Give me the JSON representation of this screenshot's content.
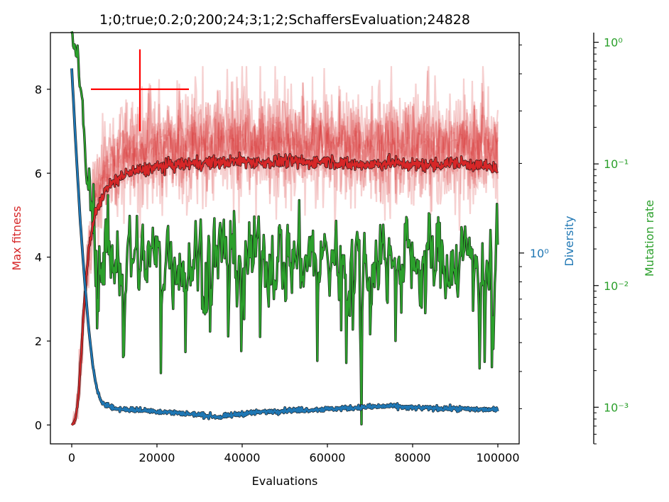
{
  "chart_data": {
    "type": "line",
    "title": "1;0;true;0.2;0;200;24;3;1;2;SchaffersEvaluation;24828",
    "xlabel": "Evaluations",
    "xlim": [
      -5000,
      105000
    ],
    "x_ticks": [
      0,
      20000,
      40000,
      60000,
      80000,
      100000
    ],
    "x_tick_labels": [
      "0",
      "20000",
      "40000",
      "60000",
      "80000",
      "100000"
    ],
    "axes": {
      "left": {
        "label": "Max fitness",
        "color": "#d62728",
        "scale": "linear",
        "ylim": [
          -0.45,
          9.35
        ],
        "ticks": [
          0,
          2,
          4,
          6,
          8
        ],
        "tick_labels": [
          "0",
          "2",
          "4",
          "6",
          "8"
        ]
      },
      "right_inner": {
        "label": "Diversity",
        "color": "#1f77b4",
        "scale": "log",
        "ticks": [
          1
        ],
        "tick_labels": [
          "10⁰"
        ]
      },
      "right_outer": {
        "label": "Mutation rate",
        "color": "#2ca02c",
        "scale": "log",
        "ylim": [
          0.0005,
          1.2
        ],
        "ticks": [
          0.001,
          0.01,
          0.1,
          1
        ],
        "tick_labels": [
          "10⁻³",
          "10⁻²",
          "10⁻¹",
          "10⁰"
        ]
      }
    },
    "marker": {
      "type": "crosshair",
      "color": "#ff0000",
      "x": 16000,
      "y": 8.0,
      "x_range": [
        4500,
        27500
      ],
      "y_range": [
        7.0,
        8.95
      ]
    },
    "series": [
      {
        "name": "Max fitness",
        "axis": "left",
        "color": "#d62728",
        "x": [
          0,
          500,
          1000,
          1500,
          2000,
          2500,
          3000,
          3500,
          4000,
          5000,
          6000,
          7000,
          8000,
          10000,
          12000,
          15000,
          18000,
          20000,
          25000,
          30000,
          35000,
          40000,
          45000,
          50000,
          55000,
          60000,
          65000,
          70000,
          75000,
          80000,
          85000,
          90000,
          95000,
          100000
        ],
        "values": [
          0.0,
          0.05,
          0.2,
          0.6,
          1.3,
          2.2,
          3.0,
          3.6,
          4.2,
          4.8,
          5.2,
          5.4,
          5.6,
          5.8,
          5.95,
          6.05,
          6.1,
          6.15,
          6.2,
          6.25,
          6.25,
          6.3,
          6.25,
          6.3,
          6.25,
          6.3,
          6.2,
          6.2,
          6.25,
          6.2,
          6.2,
          6.25,
          6.2,
          6.1
        ]
      },
      {
        "name": "Diversity",
        "axis": "right_inner",
        "color": "#1f77b4",
        "x": [
          0,
          1000,
          2000,
          3000,
          4000,
          5000,
          6000,
          7000,
          8000,
          9000,
          10000,
          15000,
          20000,
          30000,
          35000,
          40000,
          50000,
          60000,
          70000,
          75000,
          80000,
          90000,
          100000
        ],
        "values": [
          4.17,
          2.24,
          1.28,
          0.815,
          0.553,
          0.411,
          0.341,
          0.317,
          0.311,
          0.306,
          0.3,
          0.297,
          0.294,
          0.286,
          0.281,
          0.289,
          0.296,
          0.299,
          0.304,
          0.306,
          0.302,
          0.3,
          0.297
        ]
      },
      {
        "name": "Mutation rate",
        "axis": "right_outer",
        "color": "#2ca02c",
        "x": [
          0,
          1000,
          2000,
          3000,
          4000,
          5000,
          6000,
          8000,
          10000,
          15000,
          20000,
          30000,
          40000,
          50000,
          60000,
          70000,
          80000,
          90000,
          100000
        ],
        "values": [
          1.0,
          0.9,
          0.4,
          0.12,
          0.05,
          0.04,
          0.02,
          0.018,
          0.017,
          0.017,
          0.017,
          0.017,
          0.018,
          0.017,
          0.017,
          0.017,
          0.017,
          0.017,
          0.018
        ]
      }
    ]
  }
}
